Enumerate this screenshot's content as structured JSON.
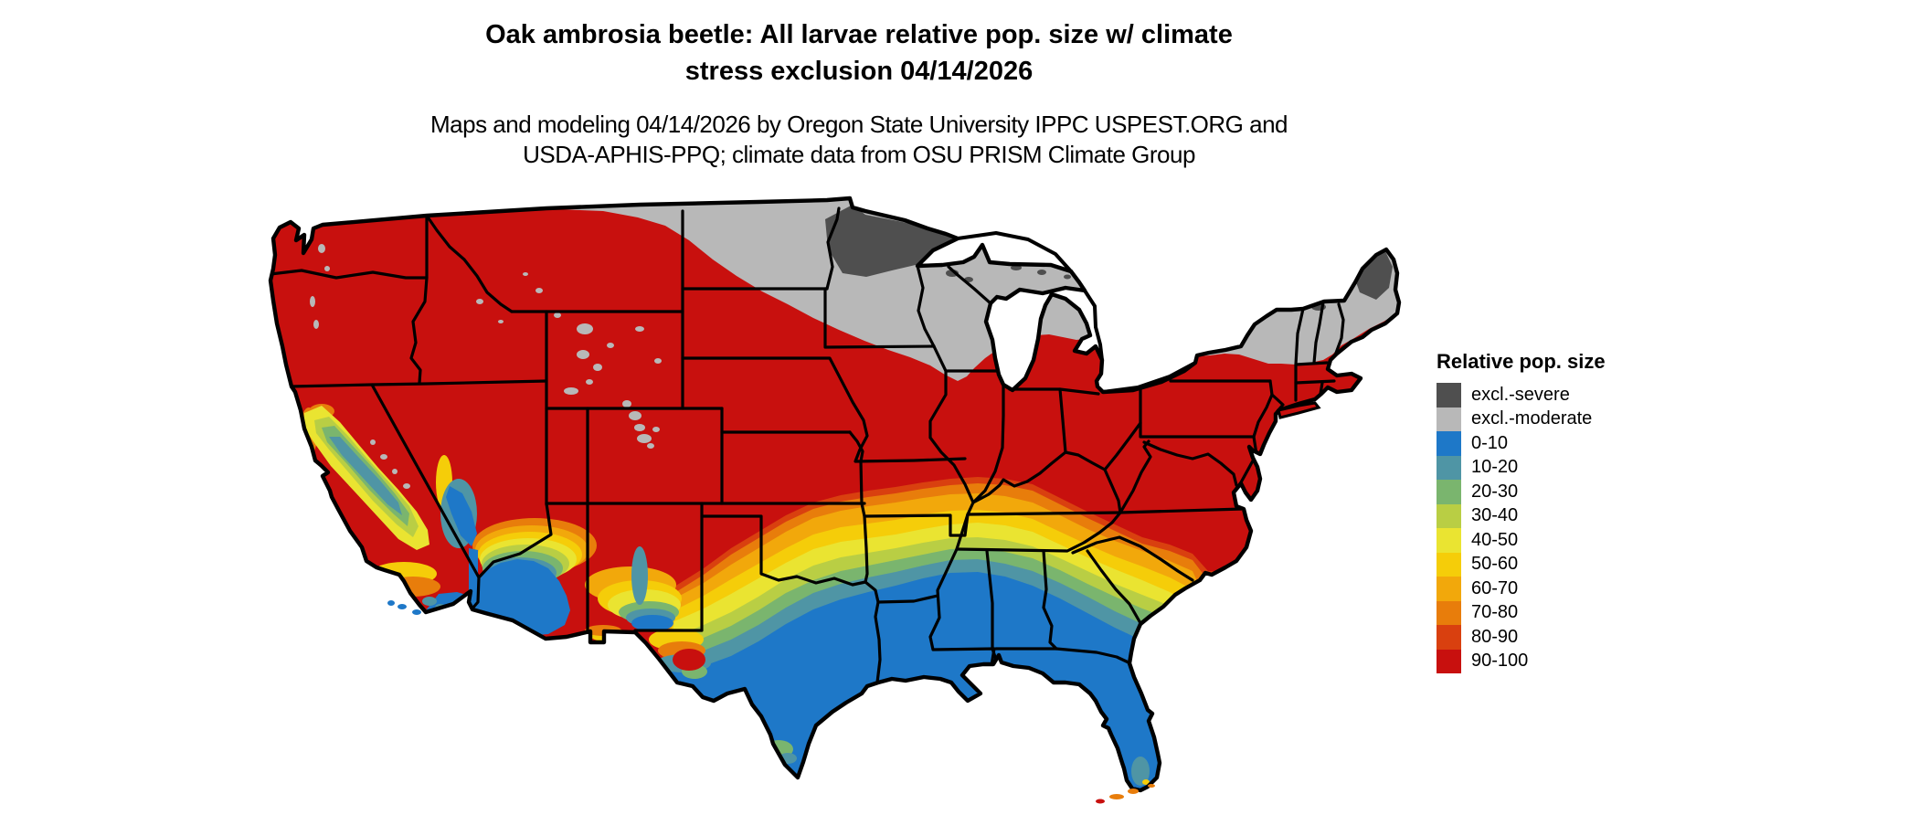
{
  "title": {
    "line1": "Oak ambrosia beetle: All larvae relative pop. size w/ climate",
    "line2": "stress exclusion 04/14/2026"
  },
  "subtitle": {
    "line1": "Maps and modeling 04/14/2026 by Oregon State University IPPC USPEST.ORG and",
    "line2": "USDA-APHIS-PPQ; climate data from OSU PRISM Climate Group"
  },
  "legend": {
    "title": "Relative pop. size",
    "items": [
      {
        "key": "excl-severe",
        "label": "excl.-severe",
        "color": "#4f4f4f"
      },
      {
        "key": "excl-moderate",
        "label": "excl.-moderate",
        "color": "#b8b8b8"
      },
      {
        "key": "0-10",
        "label": "0-10",
        "color": "#1e78c8"
      },
      {
        "key": "10-20",
        "label": "10-20",
        "color": "#4f95a5"
      },
      {
        "key": "20-30",
        "label": "20-30",
        "color": "#7ab56e"
      },
      {
        "key": "30-40",
        "label": "30-40",
        "color": "#b9ce44"
      },
      {
        "key": "40-50",
        "label": "40-50",
        "color": "#eae431"
      },
      {
        "key": "50-60",
        "label": "50-60",
        "color": "#f5cd09"
      },
      {
        "key": "60-70",
        "label": "60-70",
        "color": "#f2a80b"
      },
      {
        "key": "70-80",
        "label": "70-80",
        "color": "#e87d0b"
      },
      {
        "key": "80-90",
        "label": "80-90",
        "color": "#d9400f"
      },
      {
        "key": "90-100",
        "label": "90-100",
        "color": "#c8100e"
      }
    ]
  },
  "map": {
    "background_color": "#ffffff",
    "boundary_color": "#000000",
    "base_fill_key": "90-100"
  }
}
